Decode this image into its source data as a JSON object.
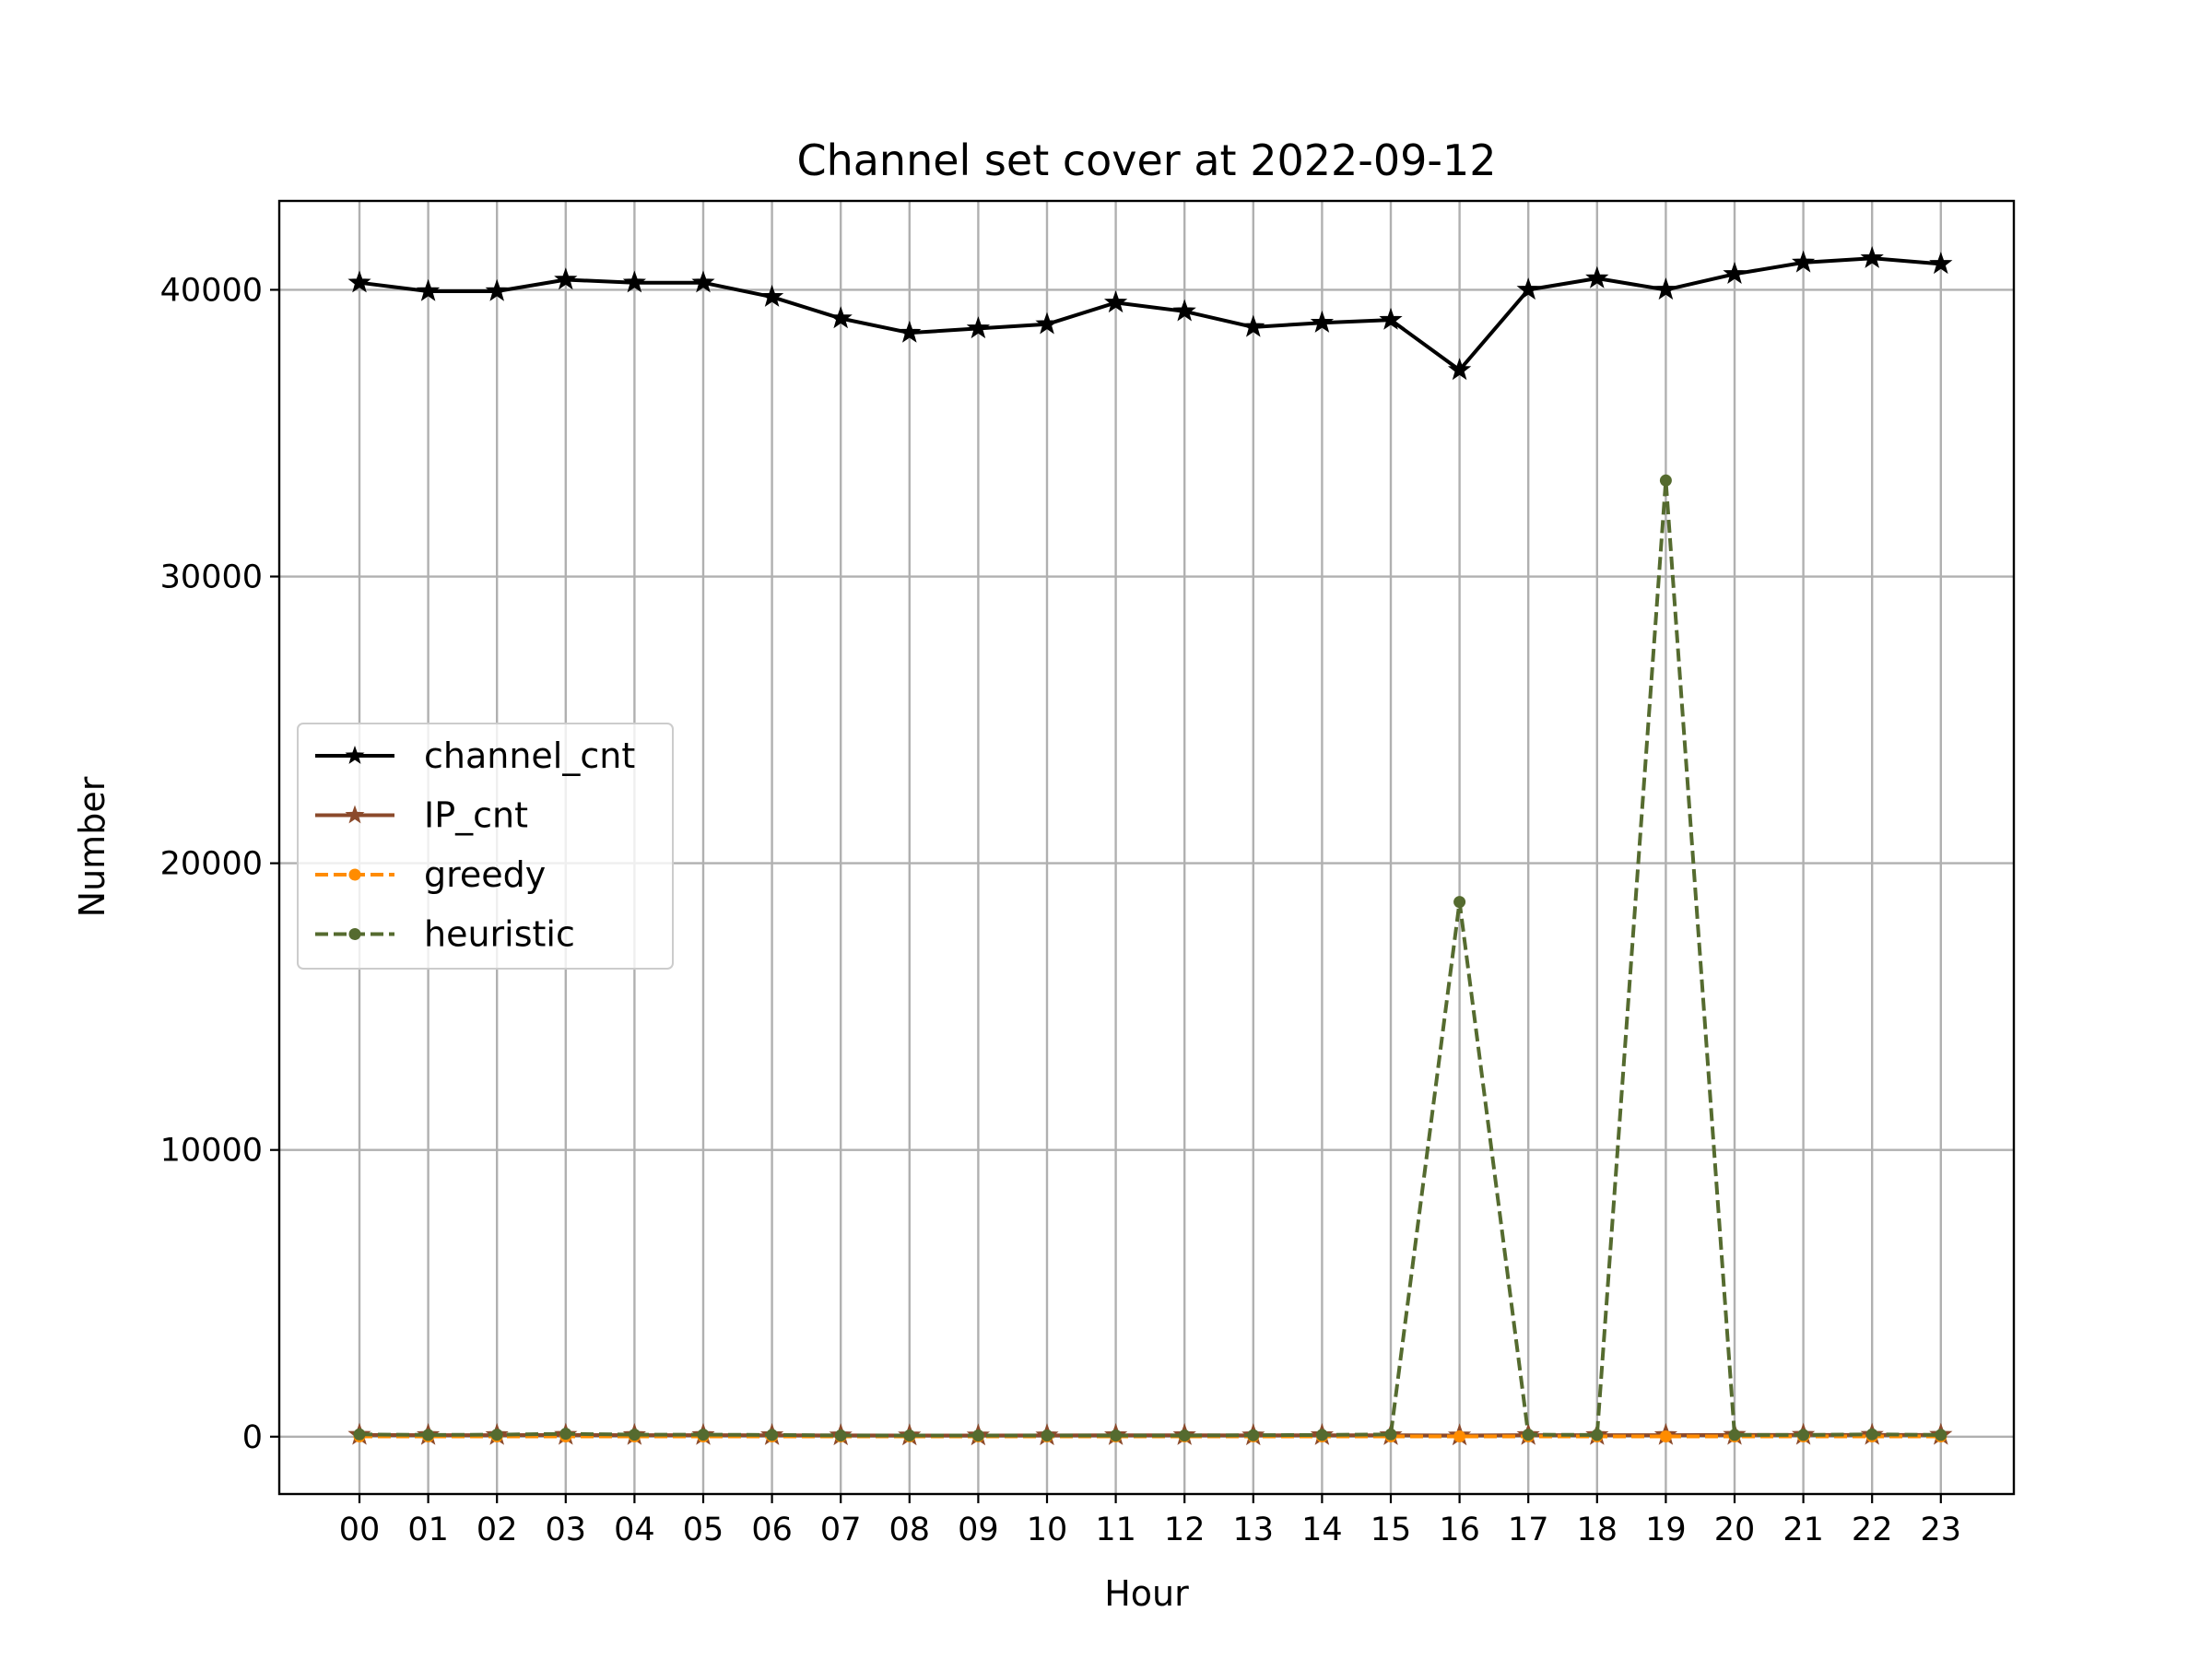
{
  "chart_data": {
    "type": "line",
    "title": "Channel set cover at 2022-09-12",
    "xlabel": "Hour",
    "ylabel": "Number",
    "categories": [
      "00",
      "01",
      "02",
      "03",
      "04",
      "05",
      "06",
      "07",
      "08",
      "09",
      "10",
      "11",
      "12",
      "13",
      "14",
      "15",
      "16",
      "17",
      "18",
      "19",
      "20",
      "21",
      "22",
      "23"
    ],
    "yticks": [
      0,
      10000,
      20000,
      30000,
      40000
    ],
    "ylim": [
      -2000,
      43100
    ],
    "grid": true,
    "legend_position": "center-left",
    "series": [
      {
        "name": "channel_cnt",
        "color": "#000000",
        "line_style": "solid",
        "marker": "star",
        "values": [
          40250,
          39950,
          39950,
          40350,
          40250,
          40250,
          39750,
          39000,
          38500,
          38650,
          38800,
          39550,
          39250,
          38700,
          38850,
          38950,
          37200,
          40000,
          40400,
          40000,
          40550,
          40950,
          41100,
          40900
        ]
      },
      {
        "name": "IP_cnt",
        "color": "#8b4a2b",
        "line_style": "solid",
        "marker": "star",
        "values": [
          60,
          55,
          55,
          60,
          55,
          55,
          50,
          45,
          40,
          40,
          45,
          50,
          50,
          45,
          50,
          50,
          40,
          55,
          55,
          55,
          60,
          60,
          60,
          60
        ]
      },
      {
        "name": "greedy",
        "color": "#ff8c00",
        "line_style": "dashed",
        "marker": "dot",
        "values": [
          10,
          10,
          10,
          10,
          10,
          10,
          10,
          10,
          10,
          10,
          10,
          10,
          10,
          10,
          10,
          10,
          10,
          10,
          10,
          10,
          10,
          10,
          10,
          10
        ]
      },
      {
        "name": "heuristic",
        "color": "#556b2f",
        "line_style": "dashed",
        "marker": "dot",
        "values": [
          80,
          60,
          70,
          100,
          70,
          70,
          60,
          40,
          40,
          40,
          40,
          40,
          40,
          50,
          60,
          80,
          18650,
          70,
          60,
          33350,
          60,
          60,
          80,
          60
        ]
      }
    ]
  }
}
